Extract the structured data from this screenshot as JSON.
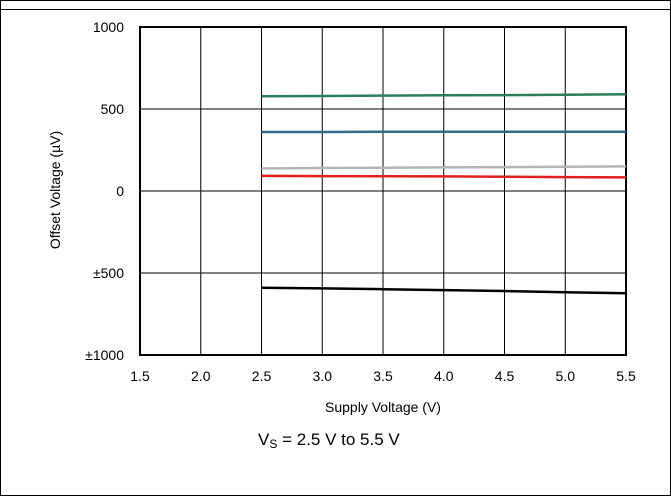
{
  "chart_data": {
    "type": "line",
    "title": "",
    "xlabel": "Supply Voltage (V)",
    "ylabel": "Offset Voltage (µV)",
    "xlim": [
      1.5,
      5.5
    ],
    "ylim": [
      -1000,
      1000
    ],
    "x_ticks": [
      "1.5",
      "2.0",
      "2.5",
      "3.0",
      "3.5",
      "4.0",
      "4.5",
      "5.0",
      "5.5"
    ],
    "y_ticks": [
      "1000",
      "500",
      "0",
      "±500",
      "±1000"
    ],
    "y_tick_values": [
      1000,
      500,
      0,
      -500,
      -1000
    ],
    "grid": true,
    "x": [
      2.5,
      3.0,
      3.5,
      4.0,
      4.5,
      5.0,
      5.5
    ],
    "series": [
      {
        "color": "#2e7d5b",
        "values": [
          578,
          579,
          582,
          584,
          585,
          587,
          590
        ]
      },
      {
        "color": "#2f6b8a",
        "values": [
          360,
          360,
          361,
          361,
          361,
          361,
          361
        ]
      },
      {
        "color": "#b5b5b5",
        "values": [
          137,
          140,
          142,
          144,
          146,
          148,
          150
        ]
      },
      {
        "color": "#e02020",
        "values": [
          92,
          91,
          90,
          89,
          87,
          85,
          83
        ]
      },
      {
        "color": "#000000",
        "values": [
          -590,
          -594,
          -599,
          -604,
          -610,
          -617,
          -624
        ]
      }
    ]
  },
  "caption": {
    "main": "V",
    "sub": "S",
    "rest": " = 2.5 V to 5.5 V"
  }
}
